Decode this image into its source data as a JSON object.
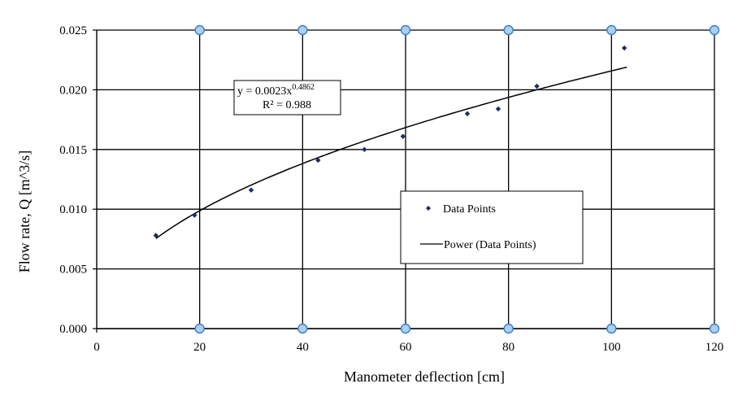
{
  "chart_data": {
    "type": "scatter",
    "title": "",
    "xlabel": "Manometer deflection [cm]",
    "ylabel": "Flow rate, Q [m^3/s]",
    "xlim": [
      0,
      120
    ],
    "ylim": [
      0,
      0.025
    ],
    "x_ticks": [
      "0",
      "20",
      "40",
      "60",
      "80",
      "100",
      "120"
    ],
    "y_ticks": [
      "0.000",
      "0.005",
      "0.010",
      "0.015",
      "0.020",
      "0.025"
    ],
    "grid": true,
    "legend_position": "right-middle",
    "series": [
      {
        "name": "Data Points",
        "marker": "diamond",
        "color": "#1f2a6b",
        "x": [
          11.5,
          19.0,
          30.0,
          43.0,
          52.0,
          59.5,
          72.0,
          78.0,
          85.5,
          102.5
        ],
        "y": [
          0.0078,
          0.0095,
          0.0116,
          0.0141,
          0.015,
          0.0161,
          0.018,
          0.0184,
          0.0203,
          0.0235
        ]
      }
    ],
    "trendline": {
      "name": "Power (Data Points)",
      "type": "power",
      "coefficient": 0.0023,
      "exponent": 0.4862,
      "x_range": [
        11.5,
        103
      ],
      "color": "#000000"
    },
    "annotation": {
      "equation_prefix": "y = 0.0023x",
      "equation_exponent": "0.4862",
      "r_squared": "R² = 0.988"
    },
    "legend": {
      "items": [
        "Data Points",
        "Power (Data Points)"
      ]
    },
    "colors": {
      "grid": "#000000",
      "marker_circle_fill": "#aacff0",
      "marker_circle_stroke": "#3a7ecb"
    }
  }
}
